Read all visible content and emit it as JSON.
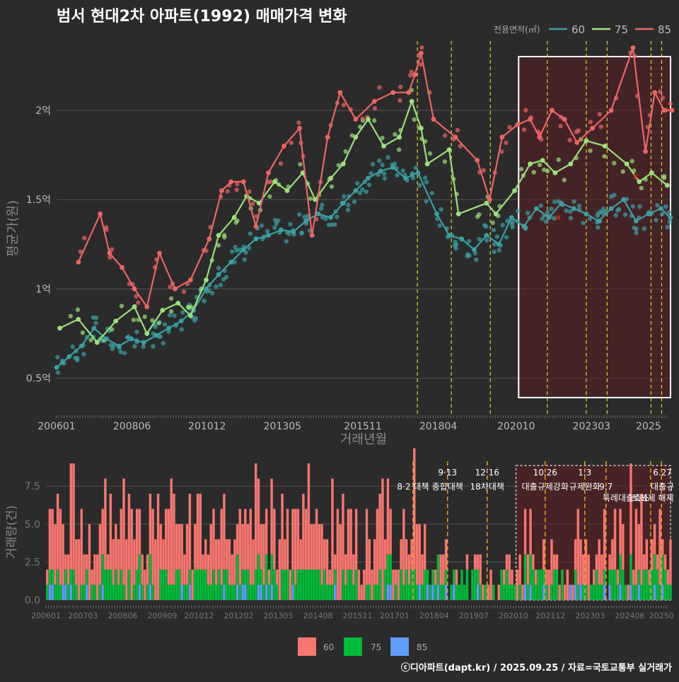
{
  "title": "범서 현대2차 아파트(1992) 매매가격 변화",
  "legend_title": "전용면적(㎡)",
  "footer": "ⓒ디아파트(dapt.kr) / 2025.09.25 / 자료=국토교통부 실거래가",
  "colors": {
    "s60": "#3aa1a6",
    "s75": "#9be07a",
    "s85": "#f06464",
    "b60": "#f87670",
    "b75": "#00ba38",
    "b85": "#619cff"
  },
  "chart_data": [
    {
      "type": "line",
      "title": "범서 현대2차 아파트(1992) 매매가격 변화",
      "xlabel": "거래년월",
      "ylabel": "평균가(원)",
      "xlim": [
        2006.0,
        2025.75
      ],
      "ylim": [
        0.3,
        2.4
      ],
      "x_ticks": [
        2006.0,
        2008.42,
        2010.83,
        2013.25,
        2015.83,
        2018.25,
        2020.75,
        2023.17,
        2025.0
      ],
      "x_tick_labels": [
        "200601",
        "200806",
        "201012",
        "201305",
        "201511",
        "201804",
        "202010",
        "202303",
        "2025"
      ],
      "y_ticks": [
        0.5,
        1.0,
        1.5,
        2.0
      ],
      "y_tick_labels": [
        "0.5억",
        "1억",
        "1.5억",
        "2억"
      ],
      "legend": [
        "60",
        "75",
        "85"
      ],
      "policy_lines": [
        2017.58,
        2018.67,
        2019.92,
        2021.75,
        2023.0,
        2023.67,
        2025.08,
        2025.42
      ],
      "highlight_range": [
        2020.83,
        2025.75
      ],
      "series": [
        {
          "name": "60",
          "x": [
            2006.0,
            2006.4,
            2006.8,
            2007.2,
            2007.6,
            2008.0,
            2008.4,
            2008.8,
            2009.2,
            2009.6,
            2010.0,
            2010.4,
            2010.8,
            2011.2,
            2011.6,
            2012.0,
            2012.4,
            2012.8,
            2013.2,
            2013.6,
            2014.0,
            2014.4,
            2014.8,
            2015.2,
            2015.6,
            2016.0,
            2016.4,
            2016.8,
            2017.2,
            2017.6,
            2018.2,
            2018.6,
            2019.0,
            2019.4,
            2019.8,
            2020.2,
            2020.6,
            2021.0,
            2021.4,
            2021.8,
            2022.2,
            2022.6,
            2023.0,
            2023.4,
            2023.8,
            2024.2,
            2024.6,
            2025.0,
            2025.4,
            2025.7
          ],
          "values": [
            0.56,
            0.62,
            0.68,
            0.78,
            0.72,
            0.68,
            0.72,
            0.7,
            0.74,
            0.78,
            0.82,
            0.88,
            1.0,
            1.08,
            1.15,
            1.22,
            1.28,
            1.3,
            1.33,
            1.32,
            1.38,
            1.42,
            1.4,
            1.48,
            1.55,
            1.62,
            1.66,
            1.68,
            1.62,
            1.65,
            1.42,
            1.3,
            1.28,
            1.22,
            1.3,
            1.25,
            1.4,
            1.35,
            1.45,
            1.4,
            1.48,
            1.45,
            1.42,
            1.38,
            1.45,
            1.5,
            1.38,
            1.42,
            1.45,
            1.4
          ]
        },
        {
          "name": "75",
          "x": [
            2006.1,
            2006.7,
            2007.3,
            2007.9,
            2008.5,
            2008.9,
            2009.4,
            2009.9,
            2010.3,
            2010.8,
            2011.2,
            2011.7,
            2012.1,
            2012.5,
            2013.0,
            2013.4,
            2013.9,
            2014.3,
            2014.8,
            2015.2,
            2015.6,
            2016.0,
            2016.5,
            2017.0,
            2017.4,
            2017.7,
            2017.9,
            2018.6,
            2018.9,
            2019.8,
            2020.1,
            2020.7,
            2021.2,
            2021.6,
            2022.0,
            2022.5,
            2023.0,
            2023.6,
            2024.3,
            2024.7,
            2025.1,
            2025.6
          ],
          "values": [
            0.78,
            0.83,
            0.7,
            0.82,
            0.9,
            0.75,
            0.88,
            0.92,
            0.85,
            1.05,
            1.3,
            1.4,
            1.52,
            1.48,
            1.6,
            1.55,
            1.65,
            1.5,
            1.62,
            1.7,
            1.85,
            1.95,
            1.8,
            1.85,
            2.05,
            1.9,
            1.7,
            1.78,
            1.42,
            1.48,
            1.42,
            1.55,
            1.7,
            1.72,
            1.65,
            1.7,
            1.83,
            1.8,
            1.7,
            1.6,
            1.65,
            1.58
          ]
        },
        {
          "name": "85",
          "x": [
            2006.7,
            2007.4,
            2007.7,
            2008.1,
            2008.5,
            2008.9,
            2009.3,
            2009.8,
            2010.3,
            2010.9,
            2011.3,
            2011.6,
            2012.0,
            2012.4,
            2012.8,
            2013.3,
            2013.8,
            2014.2,
            2014.7,
            2015.1,
            2015.6,
            2016.2,
            2016.8,
            2017.3,
            2017.5,
            2017.7,
            2018.1,
            2018.8,
            2019.5,
            2019.9,
            2020.3,
            2020.8,
            2021.2,
            2021.5,
            2021.9,
            2022.3,
            2022.7,
            2023.2,
            2023.8,
            2024.5,
            2024.9,
            2025.2,
            2025.5,
            2025.75
          ],
          "values": [
            1.15,
            1.42,
            1.2,
            1.12,
            1.0,
            0.9,
            1.2,
            1.0,
            1.05,
            1.28,
            1.55,
            1.6,
            1.6,
            1.35,
            1.65,
            1.8,
            1.9,
            1.3,
            1.85,
            2.1,
            1.95,
            2.05,
            2.1,
            2.1,
            2.2,
            2.32,
            1.95,
            1.85,
            1.72,
            1.5,
            1.85,
            1.92,
            1.95,
            1.85,
            2.0,
            1.95,
            1.82,
            1.9,
            2.0,
            2.35,
            1.77,
            2.1,
            2.0,
            2.0
          ]
        }
      ]
    },
    {
      "type": "bar",
      "title": "",
      "xlabel": "",
      "ylabel": "거래량(건)",
      "ylim": [
        0,
        9
      ],
      "y_ticks": [
        0,
        2.5,
        5,
        7.5
      ],
      "y_tick_labels": [
        "0.0",
        "2.5",
        "5.0",
        "7.5"
      ],
      "x_ticks": [
        2006.0,
        2007.17,
        2008.42,
        2009.67,
        2010.83,
        2012.08,
        2013.33,
        2014.58,
        2015.83,
        2017.0,
        2018.25,
        2019.5,
        2020.75,
        2021.92,
        2023.17,
        2024.42,
        2025.42
      ],
      "x_tick_labels": [
        "200601",
        "200703",
        "200806",
        "200909",
        "201012",
        "201202",
        "201305",
        "201408",
        "201511",
        "201701",
        "201804",
        "201907",
        "202010",
        "202112",
        "202303",
        "202406",
        "20250"
      ],
      "legend": [
        "60",
        "75",
        "85"
      ],
      "annotations": [
        {
          "x": 2017.58,
          "label": "8·2 대책",
          "row": 2
        },
        {
          "x": 2018.67,
          "label": "9·13",
          "row": 1
        },
        {
          "x": 2018.67,
          "label": "종합대책",
          "row": 2
        },
        {
          "x": 2019.92,
          "label": "12·16",
          "row": 1
        },
        {
          "x": 2019.92,
          "label": "18차대책",
          "row": 2
        },
        {
          "x": 2021.75,
          "label": "10.26",
          "row": 1
        },
        {
          "x": 2021.75,
          "label": "대출규제강화",
          "row": 2
        },
        {
          "x": 2023.0,
          "label": "1.3",
          "row": 1
        },
        {
          "x": 2023.0,
          "label": "규제완화",
          "row": 2
        },
        {
          "x": 2023.67,
          "label": "9.7",
          "row": 2
        },
        {
          "x": 2024.3,
          "label": "특례대출축소",
          "row": 3
        },
        {
          "x": 2025.15,
          "label": "토허제 해제",
          "row": 3
        },
        {
          "x": 2025.45,
          "label": "6.27",
          "row": 1
        },
        {
          "x": 2025.45,
          "label": "대출규",
          "row": 2
        }
      ]
    }
  ]
}
